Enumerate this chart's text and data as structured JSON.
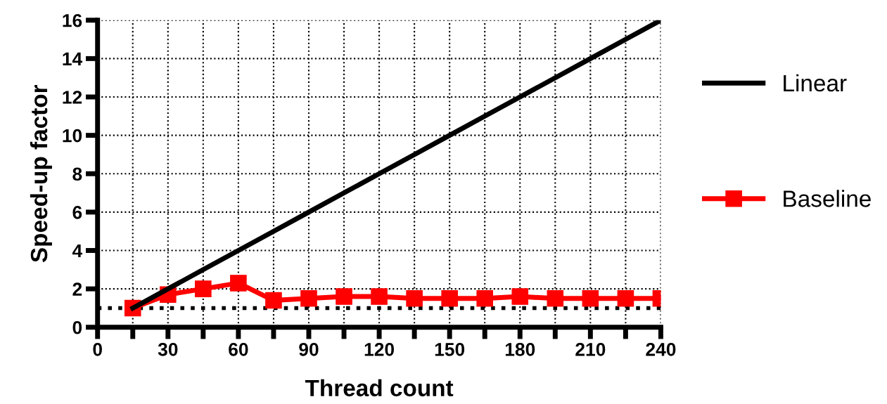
{
  "chart_data": {
    "type": "line",
    "xlabel": "Thread count",
    "ylabel": "Speed-up factor",
    "x": [
      15,
      30,
      45,
      60,
      75,
      90,
      105,
      120,
      135,
      150,
      165,
      180,
      195,
      210,
      225,
      240
    ],
    "series": [
      {
        "name": "Linear",
        "color": "#000000",
        "marker": "none",
        "values": [
          1,
          2,
          3,
          4,
          5,
          6,
          7,
          8,
          9,
          10,
          11,
          12,
          13,
          14,
          15,
          16
        ]
      },
      {
        "name": "Baseline",
        "color": "#ff0000",
        "marker": "square",
        "values": [
          1.0,
          1.7,
          2.0,
          2.3,
          1.4,
          1.5,
          1.6,
          1.6,
          1.5,
          1.5,
          1.5,
          1.6,
          1.5,
          1.5,
          1.5,
          1.5
        ]
      }
    ],
    "xlim": [
      0,
      240
    ],
    "ylim": [
      0,
      16
    ],
    "xticks": [
      0,
      {
        "value": 15,
        "label": null
      },
      30,
      {
        "value": 45,
        "label": null
      },
      60,
      {
        "value": 75,
        "label": null
      },
      90,
      {
        "value": 105,
        "label": null
      },
      120,
      {
        "value": 135,
        "label": null
      },
      150,
      {
        "value": 165,
        "label": null
      },
      180,
      {
        "value": 195,
        "label": null
      },
      210,
      {
        "value": 225,
        "label": null
      },
      240
    ],
    "yticks": [
      0,
      2,
      4,
      6,
      8,
      10,
      12,
      14,
      16
    ],
    "ref_lines": [
      {
        "axis": "y",
        "value": 1,
        "line_style": "dotted"
      }
    ],
    "grid": true,
    "legend": "right"
  }
}
